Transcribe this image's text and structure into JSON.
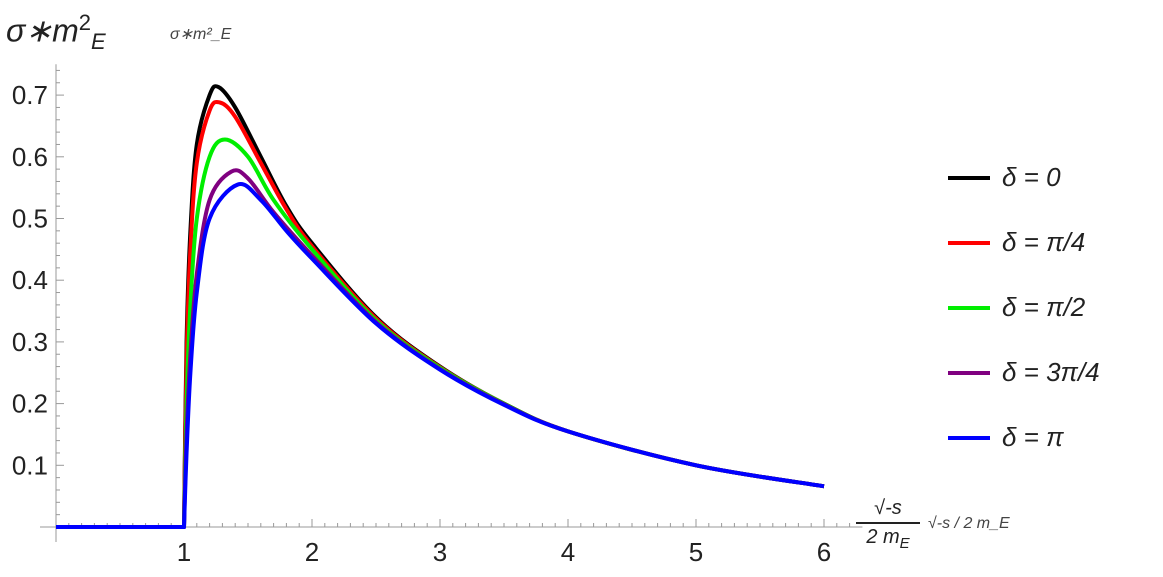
{
  "chart_data": {
    "type": "line",
    "title": "",
    "ylabel": "σ∗m²_E",
    "ylabel_parts": {
      "base": "σ∗m",
      "sup": "2",
      "sub": "E"
    },
    "xlabel": "√-s / 2 m_E",
    "xlabel_parts": {
      "numerator": "√-s",
      "denominator": "2 m",
      "denominator_sub": "E"
    },
    "xlim": [
      0,
      6.3
    ],
    "ylim": [
      0,
      0.75
    ],
    "xticks": [
      "1",
      "2",
      "3",
      "4",
      "5",
      "6"
    ],
    "yticks": [
      "0.1",
      "0.2",
      "0.3",
      "0.4",
      "0.5",
      "0.6",
      "0.7"
    ],
    "grid": false,
    "legend_position": "right",
    "series": [
      {
        "name": "δ = 0",
        "color": "#000000",
        "x": [
          0,
          1,
          1.02,
          1.05,
          1.1,
          1.2,
          1.27,
          1.4,
          1.6,
          1.8,
          2,
          2.5,
          3,
          3.5,
          4,
          5,
          6
        ],
        "y": [
          0,
          0,
          0.3,
          0.48,
          0.62,
          0.7,
          0.713,
          0.68,
          0.6,
          0.52,
          0.46,
          0.34,
          0.26,
          0.2,
          0.155,
          0.1,
          0.066
        ]
      },
      {
        "name": "δ = π/4",
        "color": "#ff0000",
        "x": [
          0,
          1,
          1.02,
          1.05,
          1.1,
          1.2,
          1.28,
          1.4,
          1.6,
          1.8,
          2,
          2.5,
          3,
          3.5,
          4,
          5,
          6
        ],
        "y": [
          0,
          0,
          0.27,
          0.45,
          0.59,
          0.675,
          0.688,
          0.665,
          0.59,
          0.515,
          0.455,
          0.338,
          0.259,
          0.2,
          0.155,
          0.1,
          0.066
        ]
      },
      {
        "name": "δ = π/2",
        "color": "#00ee00",
        "x": [
          0,
          1,
          1.02,
          1.05,
          1.1,
          1.2,
          1.32,
          1.5,
          1.7,
          2,
          2.5,
          3,
          3.5,
          4,
          5,
          6
        ],
        "y": [
          0,
          0,
          0.2,
          0.36,
          0.5,
          0.6,
          0.628,
          0.6,
          0.53,
          0.45,
          0.335,
          0.258,
          0.2,
          0.155,
          0.1,
          0.066
        ]
      },
      {
        "name": "δ = 3π/4",
        "color": "#800080",
        "x": [
          0,
          1,
          1.02,
          1.05,
          1.1,
          1.2,
          1.37,
          1.5,
          1.7,
          2,
          2.5,
          3,
          3.5,
          4,
          5,
          6
        ],
        "y": [
          0,
          0,
          0.15,
          0.28,
          0.41,
          0.53,
          0.576,
          0.565,
          0.51,
          0.44,
          0.332,
          0.256,
          0.199,
          0.155,
          0.1,
          0.066
        ]
      },
      {
        "name": "δ = π",
        "color": "#0000ff",
        "x": [
          0,
          1,
          1.02,
          1.05,
          1.1,
          1.2,
          1.42,
          1.6,
          1.8,
          2,
          2.5,
          3,
          3.5,
          4,
          5,
          6
        ],
        "y": [
          0,
          0,
          0.12,
          0.25,
          0.38,
          0.5,
          0.555,
          0.53,
          0.48,
          0.435,
          0.33,
          0.255,
          0.198,
          0.155,
          0.1,
          0.066
        ]
      }
    ]
  }
}
